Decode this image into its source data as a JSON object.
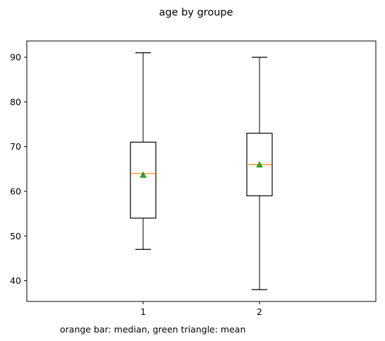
{
  "chart_data": {
    "type": "boxplot",
    "title": "age by groupe",
    "caption": "orange bar: median, green triangle: mean",
    "xlabel": "",
    "ylabel": "",
    "categories": [
      "1",
      "2"
    ],
    "ylim": [
      35.35,
      93.65
    ],
    "yticks": [
      40,
      50,
      60,
      70,
      80,
      90
    ],
    "grid": false,
    "boxes": [
      {
        "label": "1",
        "whisker_low": 47,
        "q1": 54,
        "median": 64,
        "q3": 71,
        "whisker_high": 91,
        "mean": 63.7
      },
      {
        "label": "2",
        "whisker_low": 38,
        "q1": 59,
        "median": 66,
        "q3": 73,
        "whisker_high": 90,
        "mean": 66.0
      }
    ],
    "colors": {
      "box": "#000000",
      "median": "#ff7f0e",
      "mean": "#2ca02c"
    }
  }
}
